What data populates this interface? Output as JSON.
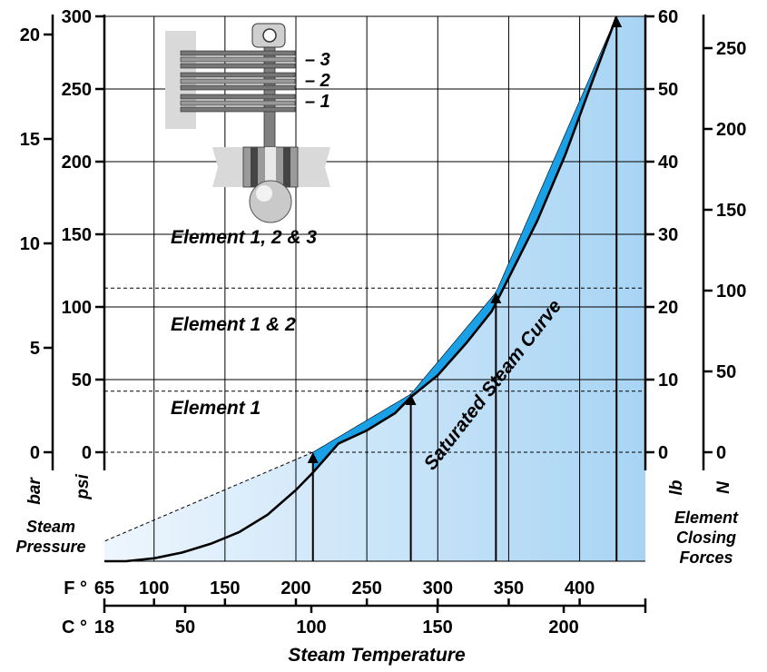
{
  "chart_data": {
    "type": "line",
    "xlabel": "Steam Temperature",
    "ylabel_left": "Steam Pressure",
    "ylabel_right": "Element Closing Forces",
    "axes": {
      "fahrenheit": {
        "unit": "F °",
        "ticks": [
          65,
          100,
          150,
          200,
          250,
          300,
          350,
          400
        ],
        "range": [
          65,
          430
        ]
      },
      "celsius": {
        "unit": "C °",
        "ticks": [
          18,
          50,
          100,
          150,
          200
        ],
        "range": [
          18,
          221
        ]
      },
      "psi": {
        "unit": "psi",
        "ticks": [
          0,
          50,
          100,
          150,
          200,
          250,
          300
        ],
        "range": [
          -75,
          300
        ]
      },
      "bar": {
        "unit": "bar",
        "ticks": [
          0,
          5,
          10,
          15,
          20
        ],
        "range": [
          -5.2,
          20.7
        ]
      },
      "lb": {
        "unit": "lb",
        "ticks": [
          0,
          10,
          20,
          30,
          40,
          50,
          60
        ],
        "range": [
          -15,
          60
        ]
      },
      "newton": {
        "unit": "N",
        "ticks": [
          0,
          50,
          100,
          150,
          200,
          250
        ],
        "range": [
          -67,
          267
        ]
      }
    },
    "saturated_curve": {
      "name": "Saturated Steam Curve",
      "x_F": [
        65,
        80,
        100,
        120,
        140,
        160,
        180,
        200,
        212,
        230,
        250,
        270,
        281,
        300,
        320,
        338,
        350,
        370,
        390,
        410,
        426
      ],
      "y_psig": [
        -75,
        -75,
        -73,
        -69,
        -63,
        -55,
        -43,
        -26,
        -14,
        6,
        15,
        27,
        38,
        53,
        75,
        97,
        120,
        159,
        205,
        258,
        300
      ]
    },
    "closing_force_line": {
      "x_F": [
        212,
        281,
        341,
        426
      ],
      "y_lb": [
        0,
        8,
        22,
        60
      ]
    },
    "thresholds_psig": [
      0,
      42,
      113,
      300
    ],
    "arrows_at_F": [
      212,
      281,
      341,
      426
    ],
    "zones": [
      {
        "label": "Element 1"
      },
      {
        "label": "Element 1 & 2"
      },
      {
        "label": "Element 1, 2 & 3"
      }
    ],
    "diagram_labels": [
      "– 3",
      "– 2",
      "– 1"
    ],
    "colors": {
      "band": "#1aa0e6",
      "fill_light": "#eef6fd",
      "fill_dark": "#a8d4f4",
      "curve": "#000000"
    },
    "grid": true
  }
}
